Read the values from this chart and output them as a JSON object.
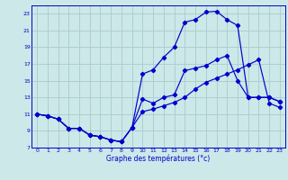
{
  "bg_color": "#cce8e8",
  "grid_color": "#aacccc",
  "line_color": "#0000cc",
  "xlabel": "Graphe des températures (°c)",
  "xlim": [
    -0.5,
    23.5
  ],
  "ylim": [
    7,
    24
  ],
  "yticks": [
    7,
    9,
    11,
    13,
    15,
    17,
    19,
    21,
    23
  ],
  "xticks": [
    0,
    1,
    2,
    3,
    4,
    5,
    6,
    7,
    8,
    9,
    10,
    11,
    12,
    13,
    14,
    15,
    16,
    17,
    18,
    19,
    20,
    21,
    22,
    23
  ],
  "series1_x": [
    0,
    1,
    2,
    3,
    4,
    5,
    6,
    7,
    8,
    9,
    10,
    11,
    12,
    13,
    14,
    15,
    16,
    17,
    18,
    19,
    20,
    21,
    22,
    23
  ],
  "series1_y": [
    11.0,
    10.8,
    10.4,
    9.3,
    9.3,
    8.5,
    8.3,
    7.9,
    7.7,
    9.4,
    15.8,
    16.3,
    17.8,
    19.0,
    22.0,
    22.3,
    23.2,
    23.3,
    22.3,
    21.6,
    13.0,
    13.0,
    13.0,
    12.5
  ],
  "series2_x": [
    0,
    1,
    2,
    3,
    4,
    5,
    6,
    7,
    8,
    9,
    10,
    11,
    12,
    13,
    14,
    15,
    16,
    17,
    18,
    19,
    20,
    21,
    22,
    23
  ],
  "series2_y": [
    11.0,
    10.8,
    10.4,
    9.3,
    9.3,
    8.5,
    8.3,
    7.9,
    7.7,
    9.4,
    12.8,
    12.3,
    13.0,
    13.3,
    16.2,
    16.5,
    16.8,
    17.5,
    18.0,
    15.0,
    13.0,
    13.0,
    13.0,
    12.5
  ],
  "series3_x": [
    0,
    1,
    2,
    3,
    4,
    5,
    6,
    7,
    8,
    9,
    10,
    11,
    12,
    13,
    14,
    15,
    16,
    17,
    18,
    19,
    20,
    21,
    22,
    23
  ],
  "series3_y": [
    11.0,
    10.8,
    10.4,
    9.3,
    9.3,
    8.5,
    8.3,
    7.9,
    7.7,
    9.4,
    11.3,
    11.6,
    12.0,
    12.4,
    13.0,
    14.0,
    14.8,
    15.3,
    15.8,
    16.3,
    16.9,
    17.5,
    12.3,
    11.8
  ]
}
